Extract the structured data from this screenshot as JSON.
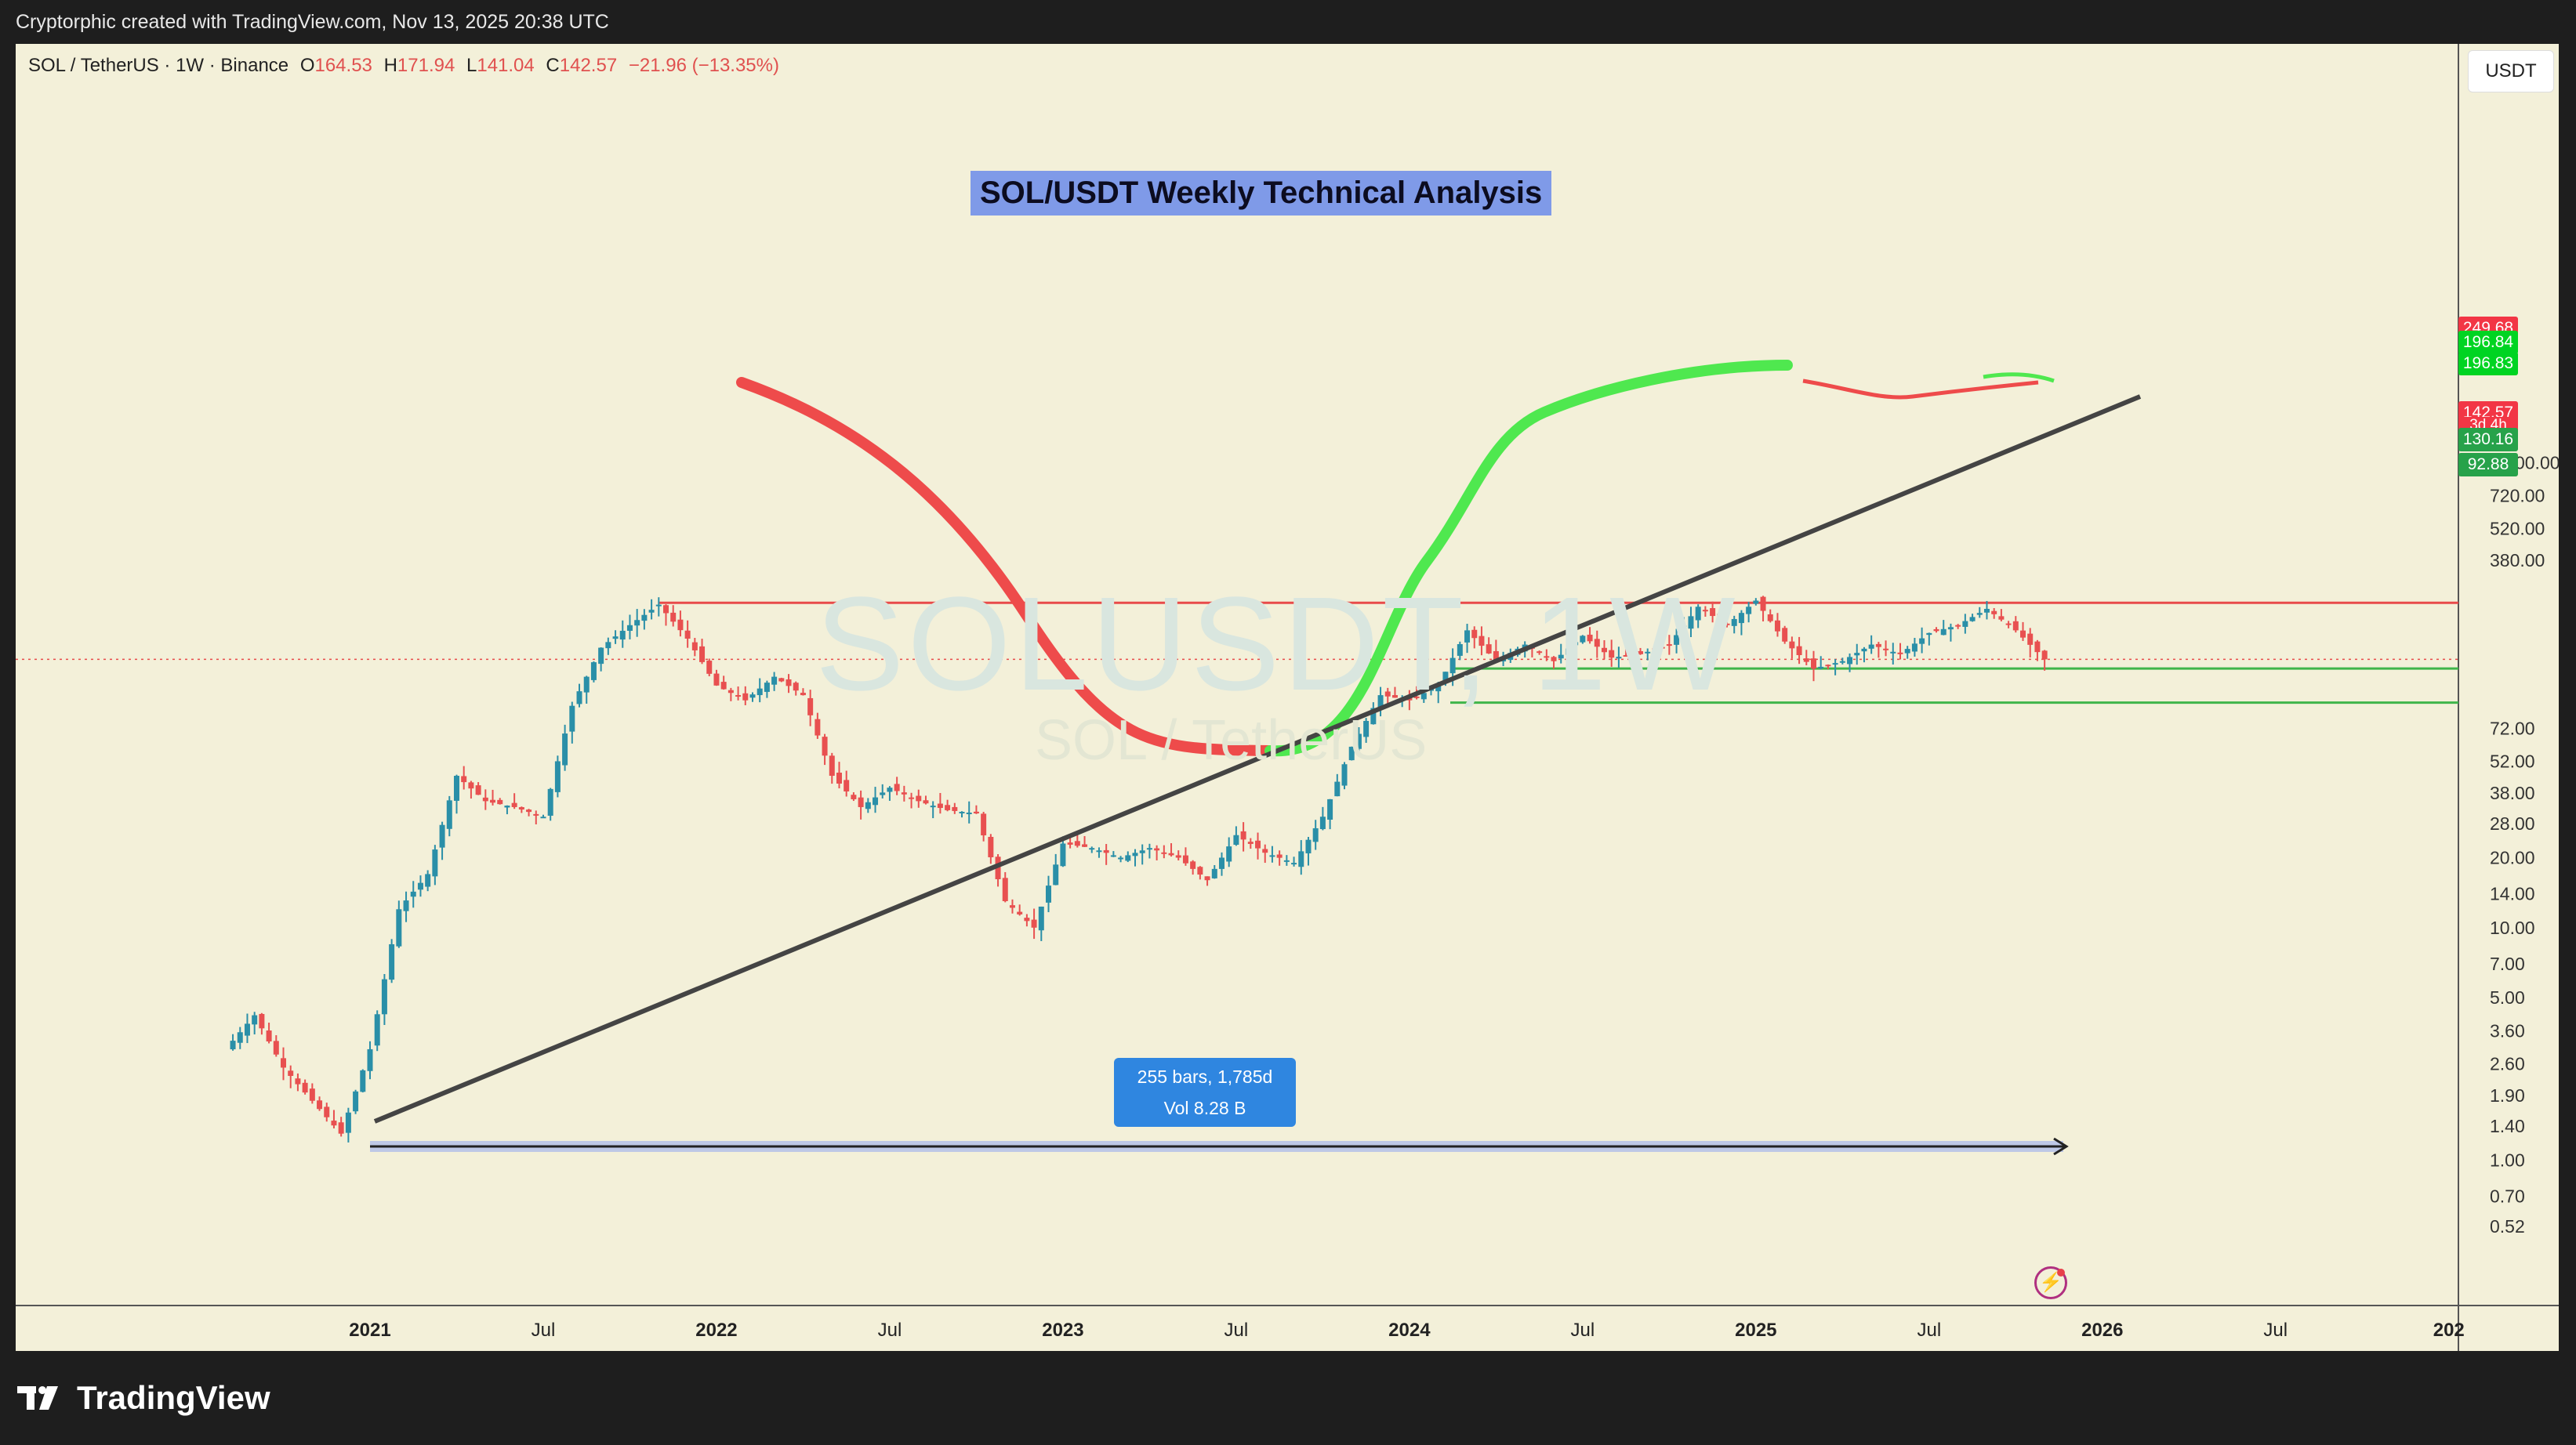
{
  "header": {
    "attribution": "Cryptorphic created with TradingView.com, Nov 13, 2025 20:38 UTC"
  },
  "symbol_bar": {
    "symbol": "SOL / TetherUS · 1W · Binance",
    "open_label": "O",
    "open": "164.53",
    "high_label": "H",
    "high": "171.94",
    "low_label": "L",
    "low": "141.04",
    "close_label": "C",
    "close": "142.57",
    "change": "−21.96 (−13.35%)"
  },
  "unit": "USDT",
  "title": "SOL/USDT Weekly Technical Analysis",
  "watermark": {
    "line1": "SOLUSDT, 1W",
    "line2": "SOL / TetherUS"
  },
  "measure": {
    "bars": "255 bars, 1,785d",
    "vol": "Vol 8.28 B"
  },
  "price_badges": [
    {
      "value": "249.68",
      "color": "#f23645"
    },
    {
      "value": "196.84",
      "color": "#00d422"
    },
    {
      "value": "196.83",
      "color": "#00d422"
    },
    {
      "value": "142.57",
      "color": "#f23645"
    },
    {
      "value": "3d 4h",
      "color": "#f23645"
    },
    {
      "value": "130.16",
      "color": "#27a24a"
    },
    {
      "value": "92.88",
      "color": "#27a24a"
    }
  ],
  "footer": {
    "brand": "TradingView"
  },
  "colors": {
    "background": "#f3f0d9",
    "up": "#2a8fa8",
    "down": "#e85050",
    "resistance": "#e84a4a",
    "support": "#3fb54a",
    "trendline": "#444444",
    "ma_red": "#ee4b4b",
    "ma_green": "#4fe84f"
  },
  "chart_data": {
    "type": "candlestick",
    "scale": "log",
    "y_ticks": [
      "1,000.00",
      "720.00",
      "520.00",
      "380.00",
      "249.68",
      "196.84",
      "142.57",
      "130.16",
      "92.88",
      "72.00",
      "52.00",
      "38.00",
      "28.00",
      "20.00",
      "14.00",
      "10.00",
      "7.00",
      "5.00",
      "3.60",
      "2.60",
      "1.90",
      "1.40",
      "1.00",
      "0.70",
      "0.52"
    ],
    "x_ticks": [
      "2021",
      "Jul",
      "2022",
      "Jul",
      "2023",
      "Jul",
      "2024",
      "Jul",
      "2025",
      "Jul",
      "2026",
      "Jul",
      "202"
    ],
    "levels": {
      "resistance": 249.68,
      "support_1": 130.16,
      "support_2": 92.88,
      "last": 142.57
    },
    "series": [
      {
        "type": "ohlc_path",
        "points": [
          [
            "2020-08",
            3.0
          ],
          [
            "2020-09",
            4.2
          ],
          [
            "2020-10",
            2.5
          ],
          [
            "2020-11",
            1.8
          ],
          [
            "2020-12",
            1.3
          ],
          [
            "2021-01",
            3.0
          ],
          [
            "2021-02",
            12
          ],
          [
            "2021-03",
            17
          ],
          [
            "2021-04",
            45
          ],
          [
            "2021-05",
            35
          ],
          [
            "2021-06",
            33
          ],
          [
            "2021-07",
            30
          ],
          [
            "2021-08",
            90
          ],
          [
            "2021-09",
            160
          ],
          [
            "2021-10",
            200
          ],
          [
            "2021-11",
            245
          ],
          [
            "2021-12",
            175
          ],
          [
            "2022-01",
            110
          ],
          [
            "2022-02",
            95
          ],
          [
            "2022-03",
            120
          ],
          [
            "2022-04",
            100
          ],
          [
            "2022-05",
            45
          ],
          [
            "2022-06",
            33
          ],
          [
            "2022-07",
            40
          ],
          [
            "2022-08",
            35
          ],
          [
            "2022-09",
            32
          ],
          [
            "2022-10",
            31
          ],
          [
            "2022-11",
            13
          ],
          [
            "2022-12",
            10
          ],
          [
            "2023-01",
            23
          ],
          [
            "2023-02",
            22
          ],
          [
            "2023-03",
            20
          ],
          [
            "2023-04",
            22
          ],
          [
            "2023-05",
            20
          ],
          [
            "2023-06",
            16
          ],
          [
            "2023-07",
            25
          ],
          [
            "2023-08",
            21
          ],
          [
            "2023-09",
            19
          ],
          [
            "2023-10",
            30
          ],
          [
            "2023-11",
            60
          ],
          [
            "2023-12",
            100
          ],
          [
            "2024-01",
            95
          ],
          [
            "2024-02",
            110
          ],
          [
            "2024-03",
            190
          ],
          [
            "2024-04",
            140
          ],
          [
            "2024-05",
            165
          ],
          [
            "2024-06",
            140
          ],
          [
            "2024-07",
            180
          ],
          [
            "2024-08",
            145
          ],
          [
            "2024-09",
            150
          ],
          [
            "2024-10",
            165
          ],
          [
            "2024-11",
            240
          ],
          [
            "2024-12",
            200
          ],
          [
            "2025-01",
            255
          ],
          [
            "2025-02",
            170
          ],
          [
            "2025-03",
            130
          ],
          [
            "2025-04",
            140
          ],
          [
            "2025-05",
            165
          ],
          [
            "2025-06",
            150
          ],
          [
            "2025-07",
            185
          ],
          [
            "2025-08",
            200
          ],
          [
            "2025-09",
            235
          ],
          [
            "2025-10",
            190
          ],
          [
            "2025-11",
            142.57
          ]
        ]
      }
    ]
  }
}
